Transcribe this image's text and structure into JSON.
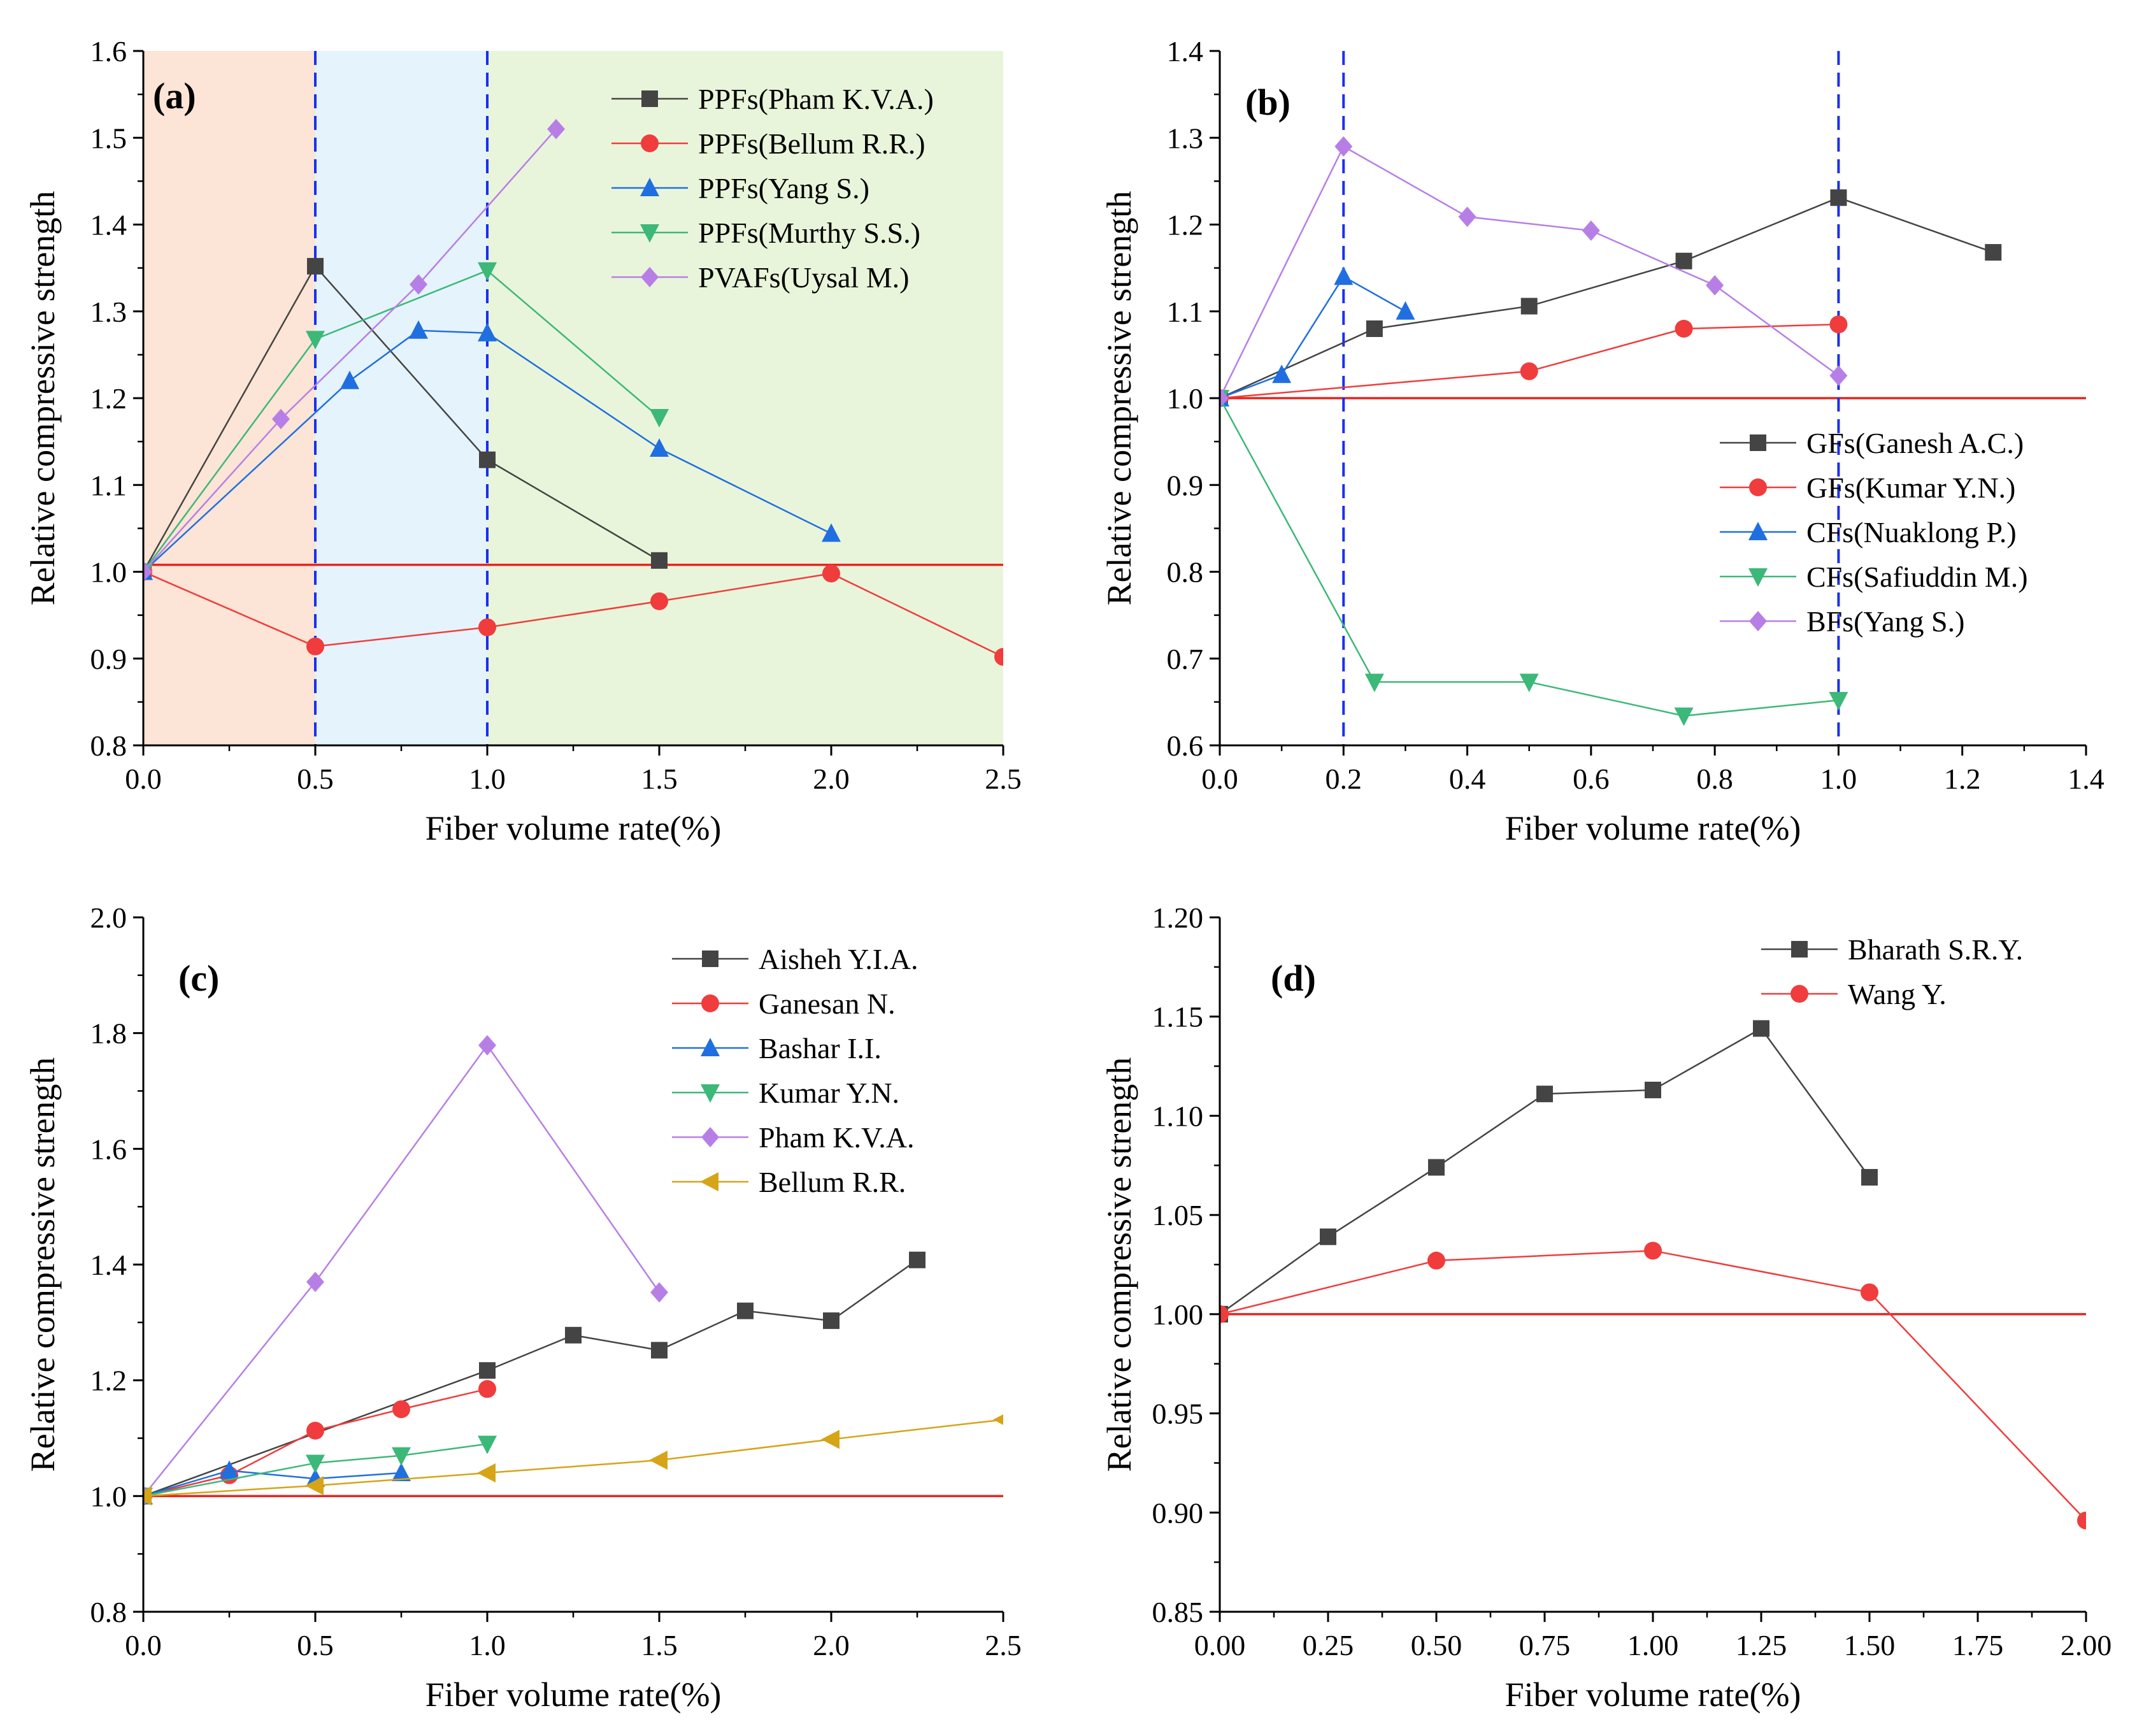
{
  "chart_data": [
    {
      "panel_label": "(a)",
      "type": "line",
      "xlabel": "Fiber volume rate(%)",
      "ylabel": "Relative compressive strength",
      "xlim": [
        0,
        2.5
      ],
      "ylim": [
        0.8,
        1.6
      ],
      "xticks": [
        0,
        0.5,
        1,
        1.5,
        2,
        2.5
      ],
      "yticks": [
        0.8,
        0.9,
        1,
        1.1,
        1.2,
        1.3,
        1.4,
        1.5,
        1.6
      ],
      "x_tick_labels": [
        "0.0",
        "0.5",
        "1.0",
        "1.5",
        "2.0",
        "2.5"
      ],
      "y_tick_labels": [
        "0.8",
        "0.9",
        "1.0",
        "1.1",
        "1.2",
        "1.3",
        "1.4",
        "1.5",
        "1.6"
      ],
      "regions": [
        {
          "from": 0,
          "to": 0.5,
          "color": "#fce4d6"
        },
        {
          "from": 0.5,
          "to": 1.0,
          "color": "#e5f3fc"
        },
        {
          "from": 1.0,
          "to": 2.5,
          "color": "#e9f5da"
        }
      ],
      "vlines": [
        0.5,
        1.0
      ],
      "hline": 1.008,
      "legend_position": "top-right",
      "series": [
        {
          "name": "PPFs(Pham K.V.A.)",
          "marker": "square",
          "color": "#444444",
          "x": [
            0,
            0.5,
            1.0,
            1.5
          ],
          "y": [
            1.0,
            1.352,
            1.129,
            1.013
          ]
        },
        {
          "name": "PPFs(Bellum R.R.)",
          "marker": "circle",
          "color": "#f03c3c",
          "x": [
            0,
            0.5,
            1.0,
            1.5,
            2.0,
            2.5
          ],
          "y": [
            1.0,
            0.914,
            0.936,
            0.966,
            0.998,
            0.902
          ]
        },
        {
          "name": "PPFs(Yang S.)",
          "marker": "triangle-up",
          "color": "#1f6fe0",
          "x": [
            0,
            0.6,
            0.8,
            1.0,
            1.5,
            2.0
          ],
          "y": [
            1.0,
            1.22,
            1.278,
            1.275,
            1.142,
            1.044
          ]
        },
        {
          "name": "PPFs(Murthy S.S.)",
          "marker": "triangle-down",
          "color": "#3cb878",
          "x": [
            0,
            0.5,
            1.0,
            1.5
          ],
          "y": [
            1.0,
            1.268,
            1.347,
            1.178
          ]
        },
        {
          "name": "PVAFs(Uysal M.)",
          "marker": "diamond",
          "color": "#b77fe6",
          "x": [
            0,
            0.4,
            0.8,
            1.2
          ],
          "y": [
            1.0,
            1.176,
            1.331,
            1.51
          ]
        }
      ]
    },
    {
      "panel_label": "(b)",
      "type": "line",
      "xlabel": "Fiber volume rate(%)",
      "ylabel": "Relative compressive strength",
      "xlim": [
        0,
        1.4
      ],
      "ylim": [
        0.6,
        1.4
      ],
      "xticks": [
        0,
        0.2,
        0.4,
        0.6,
        0.8,
        1.0,
        1.2,
        1.4
      ],
      "yticks": [
        0.6,
        0.7,
        0.8,
        0.9,
        1.0,
        1.1,
        1.2,
        1.3,
        1.4
      ],
      "x_tick_labels": [
        "0.0",
        "0.2",
        "0.4",
        "0.6",
        "0.8",
        "1.0",
        "1.2",
        "1.4"
      ],
      "y_tick_labels": [
        "0.6",
        "0.7",
        "0.8",
        "0.9",
        "1.0",
        "1.1",
        "1.2",
        "1.3",
        "1.4"
      ],
      "vlines": [
        0.2,
        1.0
      ],
      "hline": 1.0,
      "legend_position": "middle-right",
      "series": [
        {
          "name": "GFs(Ganesh A.C.)",
          "marker": "square",
          "color": "#444444",
          "x": [
            0,
            0.25,
            0.5,
            0.75,
            1.0,
            1.25
          ],
          "y": [
            1.0,
            1.08,
            1.106,
            1.158,
            1.231,
            1.168
          ]
        },
        {
          "name": "GFs(Kumar Y.N.)",
          "marker": "circle",
          "color": "#f03c3c",
          "x": [
            0,
            0.5,
            0.75,
            1.0
          ],
          "y": [
            1.0,
            1.031,
            1.08,
            1.085
          ]
        },
        {
          "name": "CFs(Nuaklong P.)",
          "marker": "triangle-up",
          "color": "#1f6fe0",
          "x": [
            0,
            0.1,
            0.2,
            0.3
          ],
          "y": [
            1.0,
            1.027,
            1.14,
            1.1
          ]
        },
        {
          "name": "CFs(Safiuddin M.)",
          "marker": "triangle-down",
          "color": "#3cb878",
          "x": [
            0,
            0.25,
            0.5,
            0.75,
            1.0
          ],
          "y": [
            1.0,
            0.673,
            0.673,
            0.634,
            0.652
          ]
        },
        {
          "name": "BFs(Yang S.)",
          "marker": "diamond",
          "color": "#b77fe6",
          "x": [
            0,
            0.2,
            0.4,
            0.6,
            0.8,
            1.0
          ],
          "y": [
            1.0,
            1.29,
            1.209,
            1.193,
            1.13,
            1.026
          ]
        }
      ]
    },
    {
      "panel_label": "(c)",
      "type": "line",
      "xlabel": "Fiber volume rate(%)",
      "ylabel": "Relative compressive strength",
      "xlim": [
        0,
        2.5
      ],
      "ylim": [
        0.8,
        2.0
      ],
      "xticks": [
        0,
        0.5,
        1,
        1.5,
        2,
        2.5
      ],
      "yticks": [
        0.8,
        1.0,
        1.2,
        1.4,
        1.6,
        1.8,
        2.0
      ],
      "x_tick_labels": [
        "0.0",
        "0.5",
        "1.0",
        "1.5",
        "2.0",
        "2.5"
      ],
      "y_tick_labels": [
        "0.8",
        "1.0",
        "1.2",
        "1.4",
        "1.6",
        "1.8",
        "2.0"
      ],
      "hline": 1.0,
      "legend_position": "top-right",
      "series": [
        {
          "name": "Aisheh Y.I.A.",
          "marker": "square",
          "color": "#444444",
          "x": [
            0,
            1.0,
            1.25,
            1.5,
            1.75,
            2.0,
            2.25
          ],
          "y": [
            1.0,
            1.217,
            1.278,
            1.252,
            1.32,
            1.303,
            1.408
          ]
        },
        {
          "name": "Ganesan N.",
          "marker": "circle",
          "color": "#f03c3c",
          "x": [
            0,
            0.25,
            0.5,
            0.75,
            1.0
          ],
          "y": [
            1.0,
            1.036,
            1.113,
            1.15,
            1.185
          ]
        },
        {
          "name": "Bashar I.I.",
          "marker": "triangle-up",
          "color": "#1f6fe0",
          "x": [
            0,
            0.25,
            0.5,
            0.75
          ],
          "y": [
            1.0,
            1.044,
            1.03,
            1.04
          ]
        },
        {
          "name": "Kumar Y.N.",
          "marker": "triangle-down",
          "color": "#3cb878",
          "x": [
            0,
            0.5,
            0.75,
            1.0
          ],
          "y": [
            1.0,
            1.057,
            1.07,
            1.09
          ]
        },
        {
          "name": "Pham K.V.A.",
          "marker": "diamond",
          "color": "#b77fe6",
          "x": [
            0,
            0.5,
            1.0,
            1.5
          ],
          "y": [
            1.0,
            1.37,
            1.779,
            1.352
          ]
        },
        {
          "name": "Bellum R.R.",
          "marker": "triangle-left",
          "color": "#d6a417",
          "x": [
            0,
            0.5,
            1.0,
            1.5,
            2.0,
            2.5
          ],
          "y": [
            1.0,
            1.018,
            1.04,
            1.062,
            1.098,
            1.132
          ]
        }
      ]
    },
    {
      "panel_label": "(d)",
      "type": "line",
      "xlabel": "Fiber volume rate(%)",
      "ylabel": "Relative compressive strength",
      "xlim": [
        0,
        2.0
      ],
      "ylim": [
        0.85,
        1.2
      ],
      "xticks": [
        0,
        0.25,
        0.5,
        0.75,
        1.0,
        1.25,
        1.5,
        1.75,
        2.0
      ],
      "yticks": [
        0.85,
        0.9,
        0.95,
        1.0,
        1.05,
        1.1,
        1.15,
        1.2
      ],
      "x_tick_labels": [
        "0.00",
        "0.25",
        "0.50",
        "0.75",
        "1.00",
        "1.25",
        "1.50",
        "1.75",
        "2.00"
      ],
      "y_tick_labels": [
        "0.85",
        "0.90",
        "0.95",
        "1.00",
        "1.05",
        "1.10",
        "1.15",
        "1.20"
      ],
      "hline": 1.0,
      "legend_position": "top-right",
      "series": [
        {
          "name": "Bharath S.R.Y.",
          "marker": "square",
          "color": "#444444",
          "x": [
            0,
            0.25,
            0.5,
            0.75,
            1.0,
            1.25,
            1.5
          ],
          "y": [
            1.0,
            1.039,
            1.074,
            1.111,
            1.113,
            1.144,
            1.069
          ]
        },
        {
          "name": "Wang Y.",
          "marker": "circle",
          "color": "#f03c3c",
          "x": [
            0,
            0.5,
            1.0,
            1.5,
            2.0
          ],
          "y": [
            1.0,
            1.027,
            1.032,
            1.011,
            0.896
          ]
        }
      ]
    }
  ]
}
